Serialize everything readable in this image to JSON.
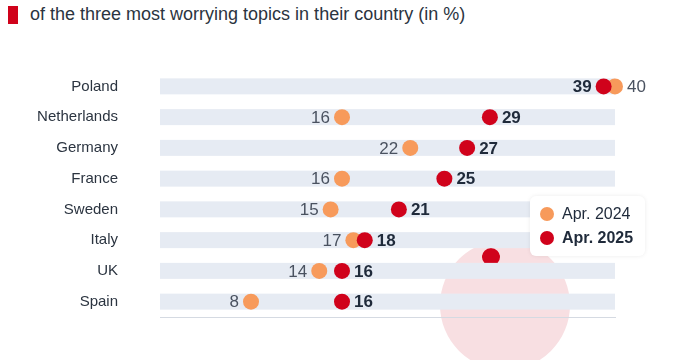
{
  "chart_data": {
    "type": "dot",
    "orientation": "horizontal",
    "title": "of the three most worrying topics in their country (in %)",
    "categories": [
      "Poland",
      "Netherlands",
      "Germany",
      "France",
      "Sweden",
      "Italy",
      "UK",
      "Spain"
    ],
    "series": [
      {
        "name": "Apr. 2024",
        "color": "#f79a5b",
        "values": [
          40,
          16,
          22,
          16,
          15,
          17,
          14,
          8
        ]
      },
      {
        "name": "Apr. 2025",
        "color": "#d0021b",
        "values": [
          39,
          29,
          27,
          25,
          21,
          18,
          16,
          16
        ]
      }
    ],
    "xlim": [
      0,
      40
    ],
    "grid": false,
    "tick_labels": "y",
    "data_labels": true,
    "legend": "right"
  }
}
